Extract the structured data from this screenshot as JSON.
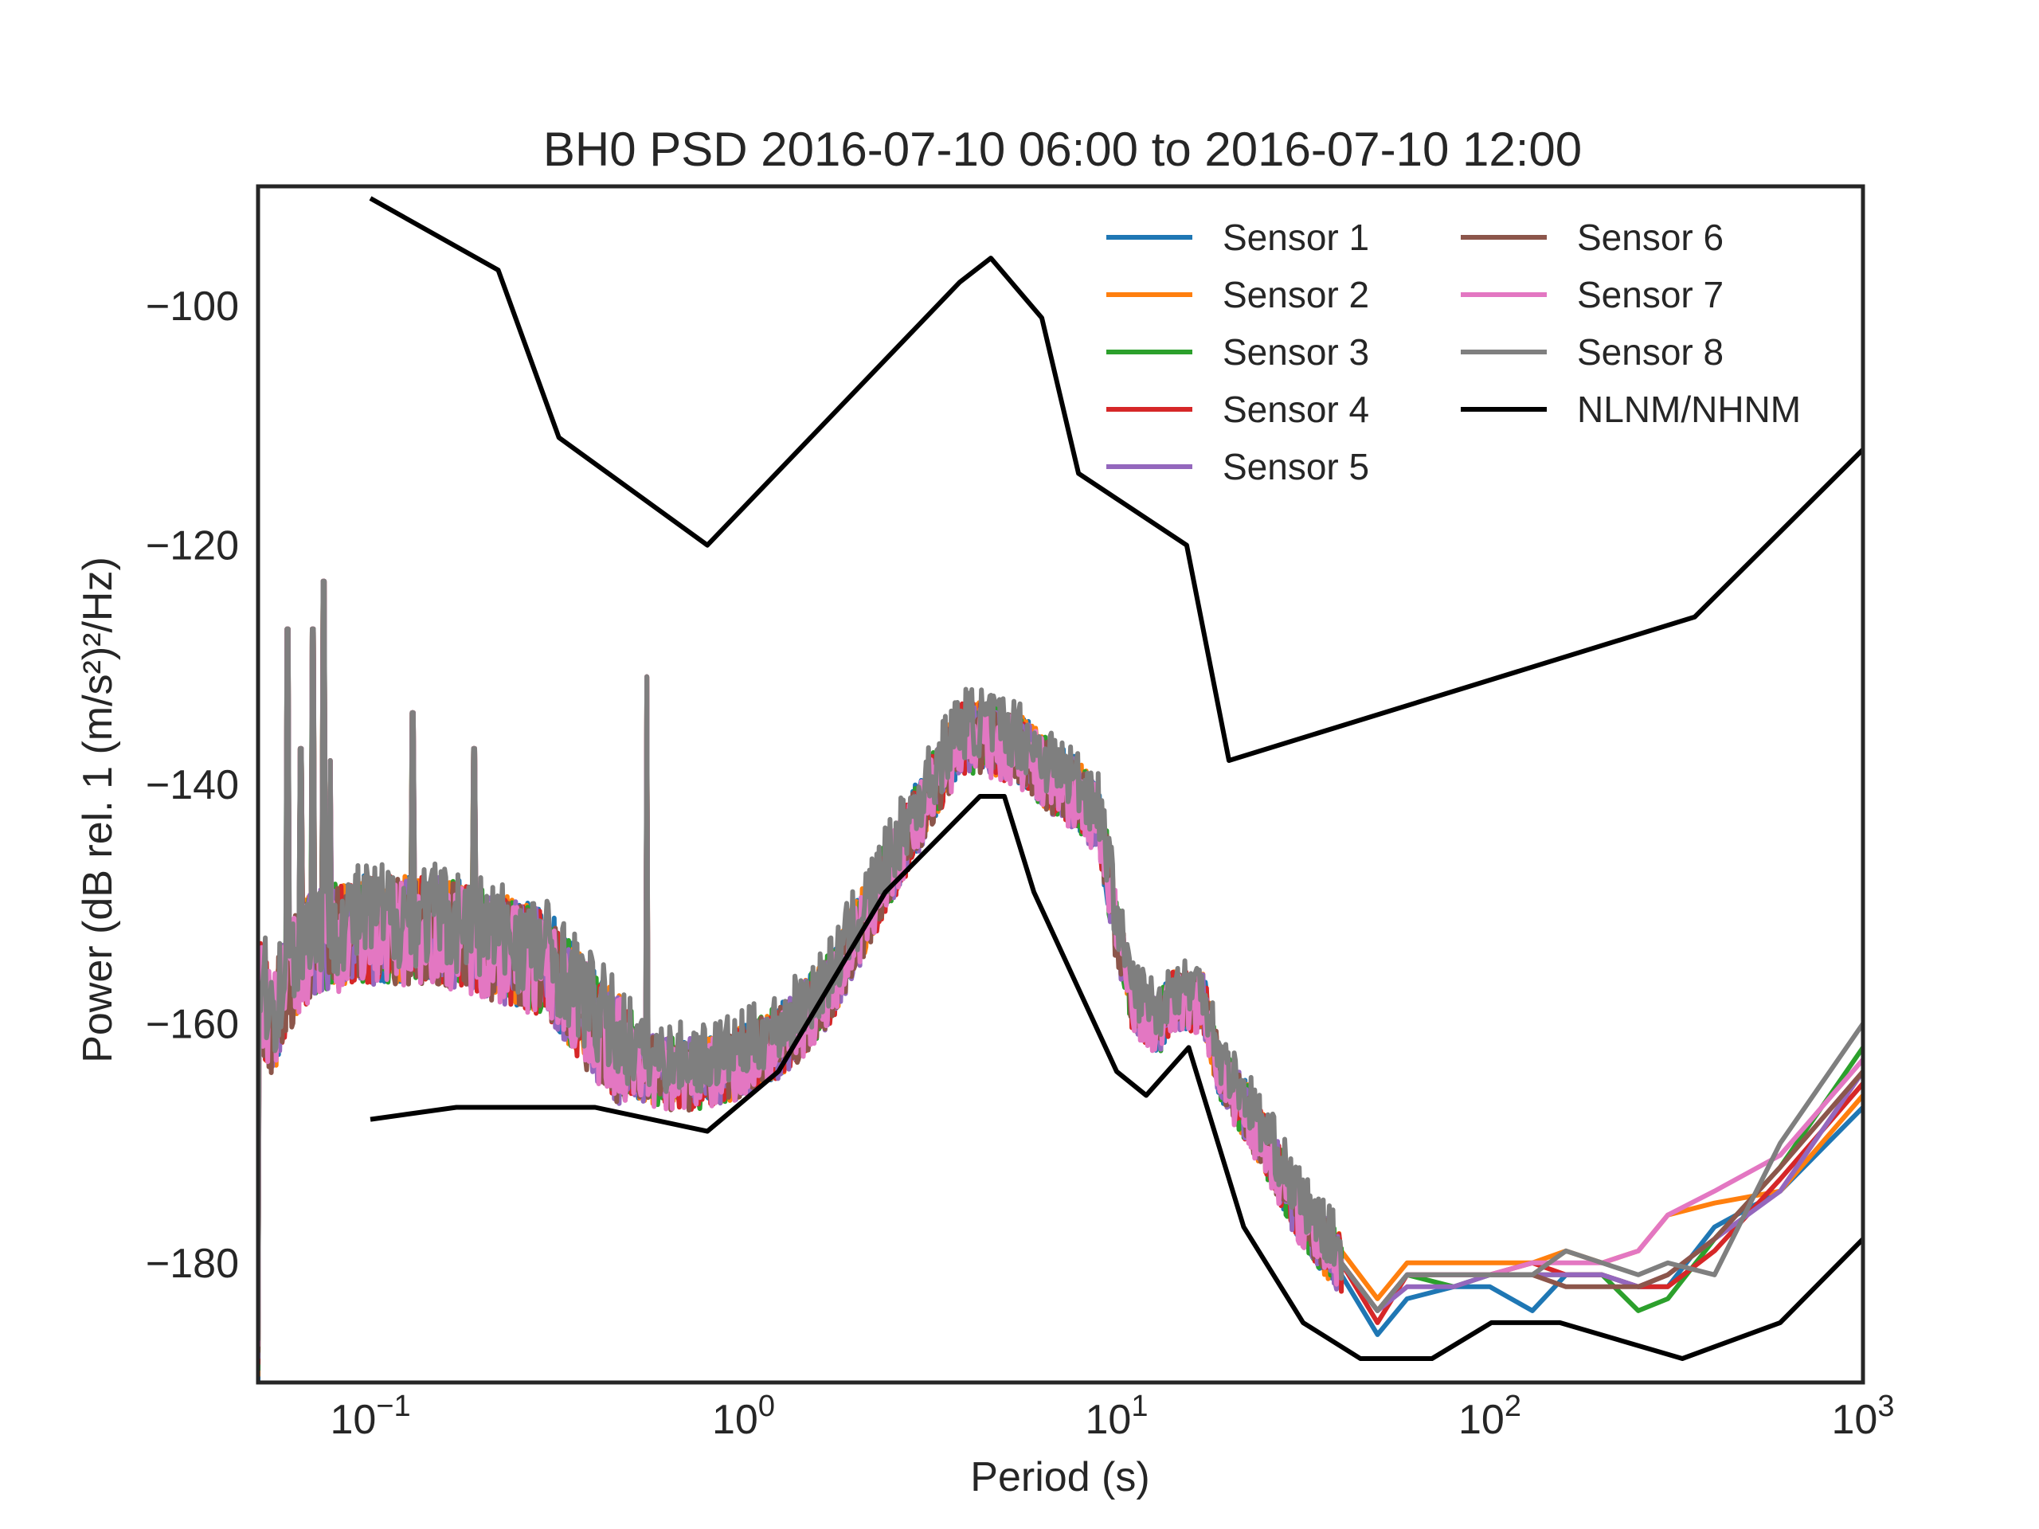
{
  "chart_data": {
    "type": "line",
    "title": "BH0 PSD 2016-07-10 06:00 to 2016-07-10 12:00",
    "xlabel": "Period (s)",
    "ylabel": "Power (dB rel. 1 (m/s²)²/Hz)",
    "x_scale": "log",
    "xlim": [
      0.05,
      1000
    ],
    "ylim": [
      -190,
      -90
    ],
    "x_ticks": [
      {
        "value": 0.1,
        "base": "10",
        "exp": "−1"
      },
      {
        "value": 1,
        "base": "10",
        "exp": "0"
      },
      {
        "value": 10,
        "base": "10",
        "exp": "1"
      },
      {
        "value": 100,
        "base": "10",
        "exp": "2"
      },
      {
        "value": 1000,
        "base": "10",
        "exp": "3"
      }
    ],
    "y_ticks": [
      {
        "value": -100,
        "label": "−100"
      },
      {
        "value": -120,
        "label": "−120"
      },
      {
        "value": -140,
        "label": "−140"
      },
      {
        "value": -160,
        "label": "−160"
      },
      {
        "value": -180,
        "label": "−180"
      }
    ],
    "grid": false,
    "legend_position": "top-right",
    "series": [
      {
        "name": "Sensor 1",
        "color": "#1f77b4",
        "tail": [
          [
            40,
            -181
          ],
          [
            50,
            -186
          ],
          [
            60,
            -183
          ],
          [
            80,
            -182
          ],
          [
            100,
            -182
          ],
          [
            130,
            -184
          ],
          [
            160,
            -181
          ],
          [
            200,
            -181
          ],
          [
            250,
            -182
          ],
          [
            300,
            -182
          ],
          [
            400,
            -177
          ],
          [
            600,
            -174
          ],
          [
            1000,
            -167
          ]
        ]
      },
      {
        "name": "Sensor 2",
        "color": "#ff7f0e",
        "tail": [
          [
            40,
            -179
          ],
          [
            50,
            -183
          ],
          [
            60,
            -180
          ],
          [
            80,
            -180
          ],
          [
            100,
            -180
          ],
          [
            130,
            -180
          ],
          [
            160,
            -179
          ],
          [
            200,
            -180
          ],
          [
            250,
            -179
          ],
          [
            300,
            -176
          ],
          [
            400,
            -175
          ],
          [
            600,
            -174
          ],
          [
            1000,
            -166
          ]
        ]
      },
      {
        "name": "Sensor 3",
        "color": "#2ca02c",
        "tail": [
          [
            40,
            -180
          ],
          [
            50,
            -184
          ],
          [
            60,
            -181
          ],
          [
            80,
            -182
          ],
          [
            100,
            -181
          ],
          [
            130,
            -181
          ],
          [
            160,
            -181
          ],
          [
            200,
            -181
          ],
          [
            250,
            -184
          ],
          [
            300,
            -183
          ],
          [
            400,
            -178
          ],
          [
            600,
            -172
          ],
          [
            1000,
            -162
          ]
        ]
      },
      {
        "name": "Sensor 4",
        "color": "#d62728",
        "tail": [
          [
            40,
            -180
          ],
          [
            50,
            -185
          ],
          [
            60,
            -181
          ],
          [
            80,
            -181
          ],
          [
            100,
            -181
          ],
          [
            130,
            -180
          ],
          [
            160,
            -181
          ],
          [
            200,
            -181
          ],
          [
            250,
            -182
          ],
          [
            300,
            -182
          ],
          [
            400,
            -179
          ],
          [
            600,
            -173
          ],
          [
            1000,
            -165
          ]
        ]
      },
      {
        "name": "Sensor 5",
        "color": "#9467bd",
        "tail": [
          [
            40,
            -180
          ],
          [
            50,
            -184
          ],
          [
            60,
            -182
          ],
          [
            80,
            -182
          ],
          [
            100,
            -181
          ],
          [
            130,
            -181
          ],
          [
            160,
            -181
          ],
          [
            200,
            -181
          ],
          [
            250,
            -182
          ],
          [
            300,
            -181
          ],
          [
            400,
            -178
          ],
          [
            600,
            -174
          ],
          [
            1000,
            -164
          ]
        ]
      },
      {
        "name": "Sensor 6",
        "color": "#8c564b",
        "tail": [
          [
            40,
            -180
          ],
          [
            50,
            -184
          ],
          [
            60,
            -181
          ],
          [
            80,
            -181
          ],
          [
            100,
            -181
          ],
          [
            130,
            -181
          ],
          [
            160,
            -182
          ],
          [
            200,
            -182
          ],
          [
            250,
            -182
          ],
          [
            300,
            -181
          ],
          [
            400,
            -178
          ],
          [
            600,
            -172
          ],
          [
            1000,
            -164
          ]
        ]
      },
      {
        "name": "Sensor 7",
        "color": "#e377c2",
        "tail": [
          [
            40,
            -180
          ],
          [
            50,
            -184
          ],
          [
            60,
            -181
          ],
          [
            80,
            -181
          ],
          [
            100,
            -181
          ],
          [
            130,
            -180
          ],
          [
            160,
            -180
          ],
          [
            200,
            -180
          ],
          [
            250,
            -179
          ],
          [
            300,
            -176
          ],
          [
            400,
            -174
          ],
          [
            600,
            -171
          ],
          [
            1000,
            -163
          ]
        ]
      },
      {
        "name": "Sensor 8",
        "color": "#7f7f7f",
        "tail": [
          [
            40,
            -180
          ],
          [
            50,
            -184
          ],
          [
            60,
            -181
          ],
          [
            80,
            -181
          ],
          [
            100,
            -181
          ],
          [
            130,
            -181
          ],
          [
            160,
            -179
          ],
          [
            200,
            -180
          ],
          [
            250,
            -181
          ],
          [
            300,
            -180
          ],
          [
            400,
            -181
          ],
          [
            600,
            -170
          ],
          [
            1000,
            -160
          ]
        ]
      },
      {
        "name": "NLNM/NHNM",
        "color": "#000000",
        "nlnm": [
          [
            0.1,
            -168
          ],
          [
            0.17,
            -167
          ],
          [
            0.4,
            -167
          ],
          [
            0.8,
            -169
          ],
          [
            1.24,
            -164
          ],
          [
            2.4,
            -149
          ],
          [
            4.3,
            -141
          ],
          [
            5,
            -141
          ],
          [
            6,
            -149
          ],
          [
            10,
            -164
          ],
          [
            12,
            -166
          ],
          [
            15.6,
            -162
          ],
          [
            21.9,
            -177
          ],
          [
            31.6,
            -185
          ],
          [
            45,
            -188
          ],
          [
            70,
            -188
          ],
          [
            101,
            -185
          ],
          [
            154,
            -185
          ],
          [
            328,
            -188
          ],
          [
            600,
            -185
          ],
          [
            1000,
            -178
          ]
        ],
        "nhnm": [
          [
            0.1,
            -91
          ],
          [
            0.22,
            -97
          ],
          [
            0.32,
            -111
          ],
          [
            0.8,
            -120
          ],
          [
            3.8,
            -98
          ],
          [
            4.6,
            -96
          ],
          [
            6.3,
            -101
          ],
          [
            7.9,
            -114
          ],
          [
            15.4,
            -120
          ],
          [
            20,
            -138
          ],
          [
            354,
            -126
          ],
          [
            1000,
            -112
          ]
        ]
      }
    ],
    "psd_shape": [
      [
        0.05,
        -157
      ],
      [
        0.055,
        -160
      ],
      [
        0.06,
        -156
      ],
      [
        0.07,
        -153
      ],
      [
        0.1,
        -152
      ],
      [
        0.15,
        -152
      ],
      [
        0.2,
        -153
      ],
      [
        0.3,
        -155
      ],
      [
        0.4,
        -160
      ],
      [
        0.5,
        -163
      ],
      [
        0.6,
        -164
      ],
      [
        0.8,
        -164
      ],
      [
        1,
        -163
      ],
      [
        1.3,
        -161
      ],
      [
        1.7,
        -157
      ],
      [
        2.2,
        -150
      ],
      [
        3,
        -142
      ],
      [
        3.8,
        -136
      ],
      [
        4.5,
        -136
      ],
      [
        5.5,
        -137
      ],
      [
        6.5,
        -139
      ],
      [
        8,
        -141
      ],
      [
        9,
        -143
      ],
      [
        10,
        -152
      ],
      [
        11,
        -158
      ],
      [
        13,
        -160
      ],
      [
        14,
        -158
      ],
      [
        17,
        -158
      ],
      [
        19,
        -164
      ],
      [
        22,
        -167
      ],
      [
        26,
        -171
      ],
      [
        30,
        -175
      ],
      [
        35,
        -178
      ],
      [
        40,
        -180
      ]
    ],
    "spikes": [
      [
        0.06,
        -131
      ],
      [
        0.065,
        -141
      ],
      [
        0.07,
        -131
      ],
      [
        0.075,
        -127
      ],
      [
        0.078,
        -142
      ],
      [
        0.13,
        -138
      ],
      [
        0.19,
        -141
      ],
      [
        0.55,
        -135
      ]
    ]
  }
}
